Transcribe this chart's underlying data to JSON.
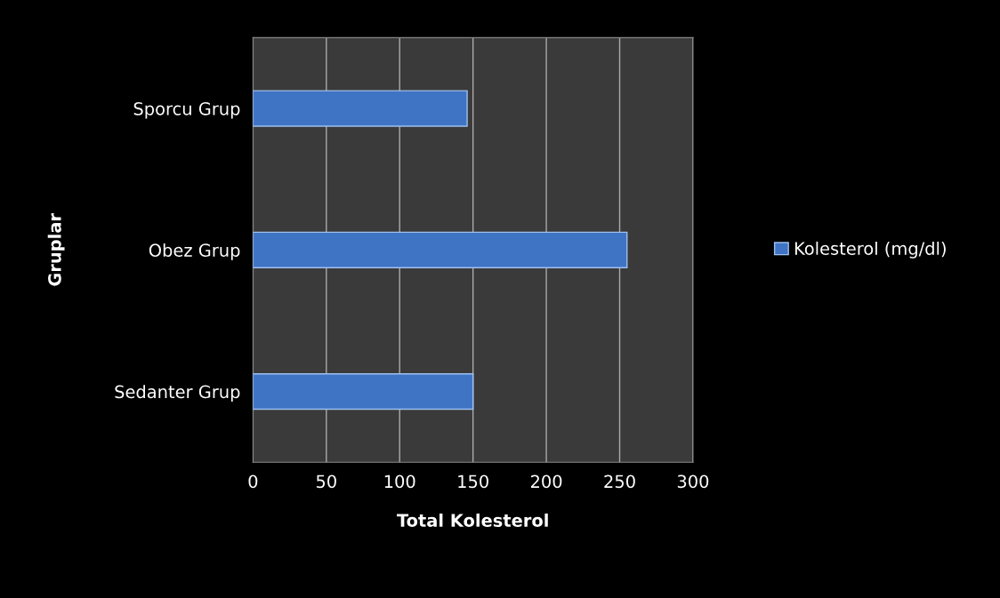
{
  "chart_data": {
    "type": "bar",
    "orientation": "horizontal",
    "xlabel": "Total Kolesterol",
    "ylabel": "Gruplar",
    "categories": [
      "Sporcu Grup",
      "Obez Grup",
      "Sedanter Grup"
    ],
    "series": [
      {
        "name": "Kolesterol (mg/dl)",
        "color": "#3f73c4",
        "values": [
          146,
          255,
          150
        ]
      }
    ],
    "xlim": [
      0,
      300
    ],
    "xticks": [
      0,
      50,
      100,
      150,
      200,
      250,
      300
    ],
    "grid": "x",
    "legend": "right"
  }
}
